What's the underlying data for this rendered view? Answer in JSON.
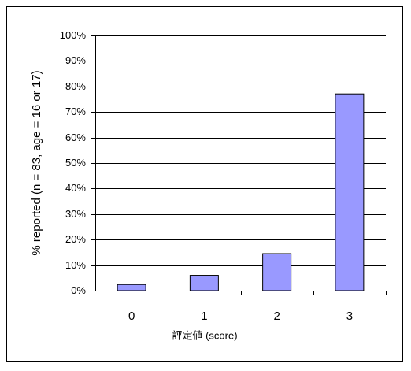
{
  "chart_data": {
    "type": "bar",
    "x_label": "評定値 (score)",
    "y_label": "% reported (n = 83, age = 16 or 17)",
    "categories": [
      "0",
      "1",
      "2",
      "3"
    ],
    "values": [
      2.4,
      6.0,
      14.5,
      77.1
    ],
    "color": "#9999ff",
    "ylim": [
      0,
      100
    ],
    "yticks": [
      {
        "value": 0,
        "label": "0%"
      },
      {
        "value": 10,
        "label": "10%"
      },
      {
        "value": 20,
        "label": "20%"
      },
      {
        "value": 30,
        "label": "30%"
      },
      {
        "value": 40,
        "label": "40%"
      },
      {
        "value": 50,
        "label": "50%"
      },
      {
        "value": 60,
        "label": "60%"
      },
      {
        "value": 70,
        "label": "70%"
      },
      {
        "value": 80,
        "label": "80%"
      },
      {
        "value": 90,
        "label": "90%"
      },
      {
        "value": 100,
        "label": "100%"
      }
    ],
    "grid": true
  }
}
